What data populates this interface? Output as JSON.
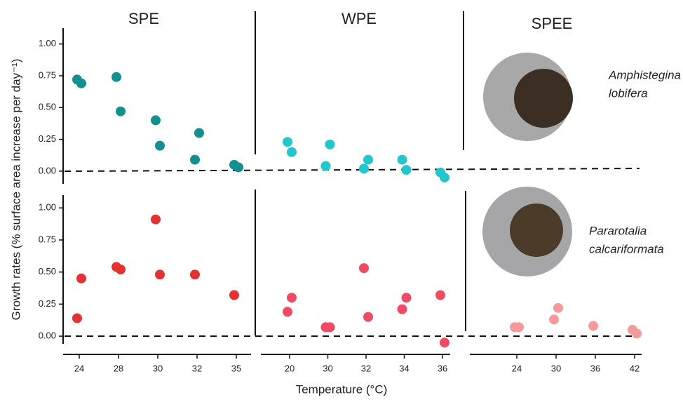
{
  "ylabel": "Growth rates (% surface area increase per day⁻¹)",
  "xlabel": "Temperature (°C)",
  "columns": [
    "SPE",
    "WPE",
    "SPEE"
  ],
  "species": [
    [
      "Amphistegina",
      "lobifera"
    ],
    [
      "Pararotalia",
      "calcariformata"
    ]
  ],
  "chart_data": [
    {
      "type": "scatter",
      "ylim": [
        -0.1,
        1.125
      ],
      "yticks": [
        {
          "value": 0,
          "label": "0.00"
        },
        {
          "value": 0.25,
          "label": "0.25"
        },
        {
          "value": 0.5,
          "label": "0.50"
        },
        {
          "value": 0.75,
          "label": "0.75"
        },
        {
          "value": 1,
          "label": "1.00"
        }
      ],
      "series": [
        {
          "color": "#138f8f",
          "x": [
            24,
            24,
            28,
            28,
            30,
            30,
            32,
            32,
            35,
            35
          ],
          "y": [
            0.72,
            0.69,
            0.74,
            0.47,
            0.4,
            0.2,
            0.09,
            0.3,
            0.05,
            0.03
          ]
        }
      ]
    },
    {
      "type": "scatter",
      "ylim": [
        -0.1,
        1.125
      ],
      "series": [
        {
          "color": "#22c6cc",
          "x": [
            20,
            20,
            30,
            30,
            32,
            32,
            34,
            34,
            36,
            36
          ],
          "y": [
            0.23,
            0.15,
            0.04,
            0.21,
            0.02,
            0.09,
            0.09,
            0.01,
            -0.01,
            -0.05
          ]
        }
      ]
    },
    {
      "type": "scatter",
      "ylim": [
        -0.06,
        1.1
      ],
      "yticks": [
        {
          "value": 0,
          "label": "0.00"
        },
        {
          "value": 0.25,
          "label": "0.25"
        },
        {
          "value": 0.5,
          "label": "0.50"
        },
        {
          "value": 0.75,
          "label": "0.75"
        },
        {
          "value": 1,
          "label": "1.00"
        }
      ],
      "categories": [
        24,
        28,
        30,
        32,
        35
      ],
      "series": [
        {
          "color": "#e43232",
          "x": [
            24,
            24,
            28,
            28,
            30,
            30,
            32,
            35
          ],
          "y": [
            0.14,
            0.45,
            0.54,
            0.52,
            0.91,
            0.48,
            0.48,
            0.32
          ]
        }
      ]
    },
    {
      "type": "scatter",
      "ylim": [
        -0.06,
        1.1
      ],
      "categories": [
        20,
        30,
        32,
        34,
        36
      ],
      "series": [
        {
          "color": "#ef4b63",
          "x": [
            20,
            20,
            30,
            30,
            32,
            32,
            34,
            34,
            36,
            36
          ],
          "y": [
            0.19,
            0.3,
            0.07,
            0.07,
            0.53,
            0.15,
            0.21,
            0.3,
            0.32,
            -0.05
          ]
        }
      ]
    },
    {
      "type": "scatter",
      "ylim": [
        -0.06,
        1.1
      ],
      "categories": [
        24,
        30,
        36,
        42
      ],
      "series": [
        {
          "color": "#f59a9a",
          "x": [
            24,
            24,
            30,
            30,
            36,
            42,
            42
          ],
          "y": [
            0.07,
            0.07,
            0.13,
            0.22,
            0.08,
            0.05,
            0.02
          ]
        }
      ]
    }
  ]
}
